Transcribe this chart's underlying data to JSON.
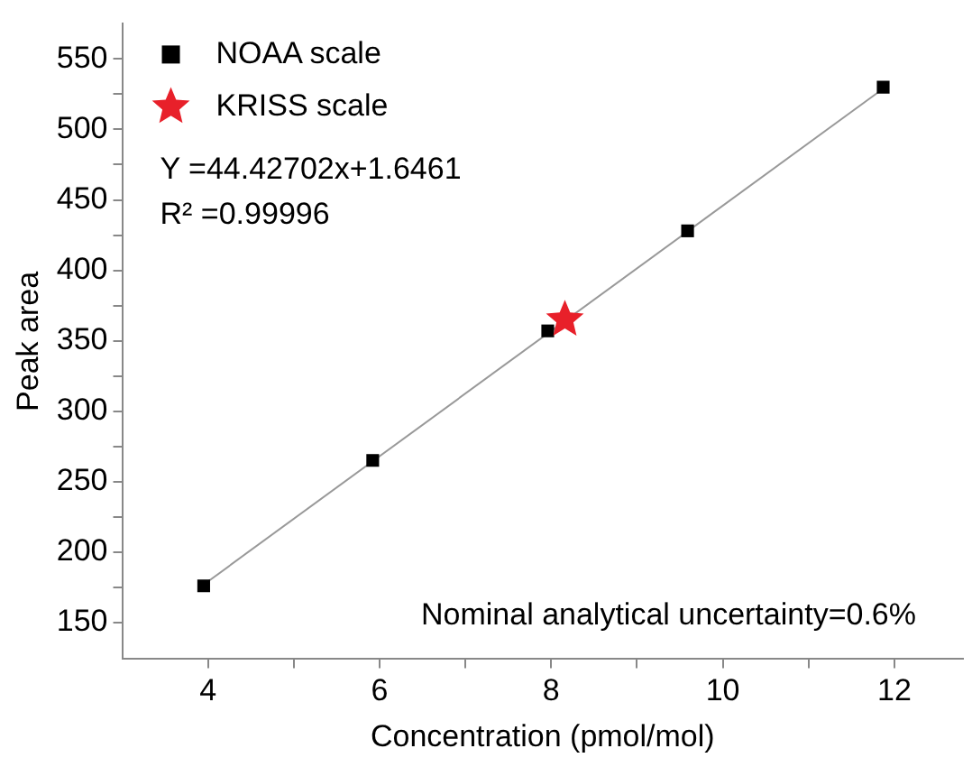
{
  "chart_data": {
    "type": "scatter",
    "xlabel": "Concentration (pmol/mol)",
    "ylabel": "Peak area",
    "xlim": [
      3,
      12.8
    ],
    "ylim": [
      124,
      575
    ],
    "xticks": [
      4,
      {
        "value": 5,
        "label": null
      },
      6,
      {
        "value": 7,
        "label": null
      },
      8,
      {
        "value": 9,
        "label": null
      },
      10,
      {
        "value": 11,
        "label": null
      },
      12
    ],
    "yticks": [
      150,
      {
        "value": 175,
        "label": null
      },
      200,
      {
        "value": 225,
        "label": null
      },
      250,
      {
        "value": 275,
        "label": null
      },
      300,
      {
        "value": 325,
        "label": null
      },
      350,
      {
        "value": 375,
        "label": null
      },
      400,
      {
        "value": 425,
        "label": null
      },
      450,
      {
        "value": 475,
        "label": null
      },
      500,
      {
        "value": 525,
        "label": null
      },
      550
    ],
    "grid": false,
    "legend": "top left",
    "series": [
      {
        "name": "NOAA scale",
        "type": "scatter",
        "marker": "square",
        "color": "#000000",
        "x": [
          3.95,
          5.92,
          7.96,
          9.59,
          11.87
        ],
        "values": [
          176,
          265,
          357,
          428,
          530
        ]
      },
      {
        "name": "KRISS scale",
        "type": "scatter",
        "marker": "star",
        "color": "#e8202a",
        "x": [
          8.16
        ],
        "values": [
          365
        ]
      },
      {
        "type": "line",
        "marker": "none",
        "color": "#999999",
        "x": [
          3.93,
          11.87
        ],
        "values": [
          176,
          529
        ]
      }
    ],
    "annotations": [
      "Y =44.42702x+1.6461",
      "R² =0.99996",
      "Nominal analytical uncertainty=0.6%"
    ]
  }
}
